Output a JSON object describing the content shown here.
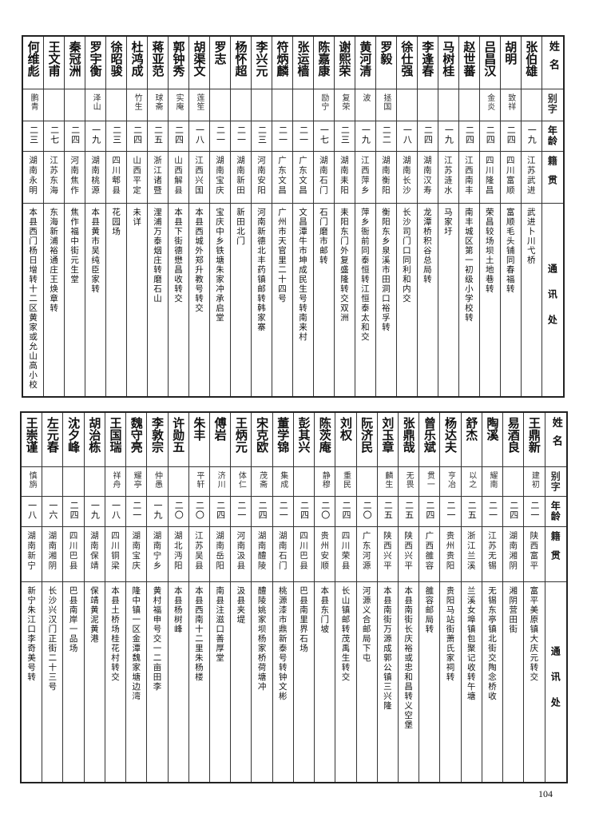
{
  "headers": {
    "name": "姓名",
    "alias": "别字",
    "age": "年龄",
    "origin": "籍贯",
    "address": "通讯处"
  },
  "tables": [
    {
      "rows": [
        {
          "name": "张伯雄",
          "alias": "",
          "age": "一九",
          "origin": "江苏武进",
          "address": "武进卜川弋桥"
        },
        {
          "name": "胡明",
          "alias": "致祥",
          "age": "二四",
          "origin": "四川富顺",
          "address": "富顺毛头铺同春福转"
        },
        {
          "name": "吕昌汉",
          "alias": "金炎",
          "age": "二四",
          "origin": "四川隆昌",
          "address": "荣昌较场坝土地巷转"
        },
        {
          "name": "赵世蕃",
          "alias": "",
          "age": "二四",
          "origin": "江西南丰",
          "address": "南丰城区第一初级小学校转"
        },
        {
          "name": "马树桂",
          "alias": "",
          "age": "一九",
          "origin": "江苏涟水",
          "address": "马家圩"
        },
        {
          "name": "李逢春",
          "alias": "",
          "age": "二四",
          "origin": "湖南汉寿",
          "address": "龙潭桥积谷总局转"
        },
        {
          "name": "徐仕强",
          "alias": "",
          "age": "一八",
          "origin": "湖南长沙",
          "address": "长沙司门口同利和内交"
        },
        {
          "name": "罗毅",
          "alias": "拯国",
          "age": "二二",
          "origin": "湖南衡阳",
          "address": "衡阳东乡泉溪市田洞口裕孚转"
        },
        {
          "name": "黄河清",
          "alias": "波",
          "age": "一九",
          "origin": "江西萍乡",
          "address": "萍乡衙前同泰恒转江恒泰太和交"
        },
        {
          "name": "谢熙荣",
          "alias": "复荣",
          "age": "二三",
          "origin": "湖南耒阳",
          "address": "耒阳东门外复盛隆转交双洲"
        },
        {
          "name": "陈嘉康",
          "alias": "励宁",
          "age": "一七",
          "origin": "湖南石门",
          "address": "石门磨市邮转"
        },
        {
          "name": "张运樯",
          "alias": "",
          "age": "二一",
          "origin": "广东文昌",
          "address": "文昌潭牛市坤成民生号转南来村"
        },
        {
          "name": "符炳麟",
          "alias": "",
          "age": "二一",
          "origin": "广东文昌",
          "address": "广州市天官里二十四号"
        },
        {
          "name": "李兴元",
          "alias": "",
          "age": "二三",
          "origin": "河南安阳",
          "address": "河南新德北丰药镇邮转韩家寨"
        },
        {
          "name": "杨怀超",
          "alias": "",
          "age": "二一",
          "origin": "湖南新田",
          "address": "新田北门"
        },
        {
          "name": "罗志",
          "alias": "",
          "age": "二一",
          "origin": "湖南宝庆",
          "address": "宝庆中乡铁塘朱家冲承启堂"
        },
        {
          "name": "胡渠文",
          "alias": "莲笙",
          "age": "一八",
          "origin": "江西兴国",
          "address": "本县西城外郑升教号转交"
        },
        {
          "name": "郭钟秀",
          "alias": "实庵",
          "age": "二四",
          "origin": "山西解县",
          "address": "本县下街德懋昌收转交"
        },
        {
          "name": "蒋亚范",
          "alias": "球斋",
          "age": "二五",
          "origin": "浙江诸暨",
          "address": "浬浦万泰烟庄转磨石山"
        },
        {
          "name": "杜鸿成",
          "alias": "竹生",
          "age": "二四",
          "origin": "山西平定",
          "address": "未详"
        },
        {
          "name": "徐昭骏",
          "alias": "",
          "age": "二三",
          "origin": "四川郫县",
          "address": "花园场"
        },
        {
          "name": "罗宇衡",
          "alias": "泽山",
          "age": "一九",
          "origin": "湖南桃源",
          "address": "本县黄市吴纯臣家转"
        },
        {
          "name": "秦冠洲",
          "alias": "",
          "age": "二四",
          "origin": "河南焦作",
          "address": "焦作福中街元生堂"
        },
        {
          "name": "王文甫",
          "alias": "",
          "age": "二七",
          "origin": "江苏东海",
          "address": "东海新浦裕通庄王焕章转"
        },
        {
          "name": "何维彪",
          "alias": "鹏青",
          "age": "二三",
          "origin": "湖南永明",
          "address": "本县西门杨日增转十二区黄家或允山高小校"
        }
      ]
    },
    {
      "rows": [
        {
          "name": "王鼎新",
          "alias": "建初",
          "age": "二一",
          "origin": "陕西富平",
          "address": "富平美原镇大庆元转交"
        },
        {
          "name": "易酒良",
          "alias": "",
          "age": "二四",
          "origin": "湖南湘阴",
          "address": "湘阴营田街"
        },
        {
          "name": "陶溪",
          "alias": "耀南",
          "age": "二一",
          "origin": "江苏无锡",
          "address": "无锡东亭镇北街交陶念桥收"
        },
        {
          "name": "舒杰",
          "alias": "以之",
          "age": "二五",
          "origin": "浙江兰溪",
          "address": "兰溪女埠镇包聚记收转午塘"
        },
        {
          "name": "杨达夫",
          "alias": "亨冶",
          "age": "二一",
          "origin": "贵州贵阳",
          "address": "贵阳马站街萧氏家祠转"
        },
        {
          "name": "曾乐斌",
          "alias": "贯一",
          "age": "二四",
          "origin": "广西雒容",
          "address": "雒容邮局转"
        },
        {
          "name": "张鼎哉",
          "alias": "无畏",
          "age": "二五",
          "origin": "陕西兴平",
          "address": "本县南街长庆裕或忠和昌转义空堡"
        },
        {
          "name": "刘玉章",
          "alias": "麟生",
          "age": "二五",
          "origin": "陕西兴平",
          "address": "本县南街万源成郭公镇三兴隆"
        },
        {
          "name": "阮济民",
          "alias": "",
          "age": "二〇",
          "origin": "广东河源",
          "address": "河源义合邮局下屯"
        },
        {
          "name": "刘权",
          "alias": "重民",
          "age": "二四",
          "origin": "四川荣县",
          "address": "长山镇邮转茂禹生转交"
        },
        {
          "name": "陈茨庵",
          "alias": "静穆",
          "age": "二〇",
          "origin": "贵州安顺",
          "address": "本县东门坡"
        },
        {
          "name": "彭其兴",
          "alias": "",
          "age": "二四",
          "origin": "四川巴县",
          "address": "巴县南里界石场"
        },
        {
          "name": "董学锦",
          "alias": "集成",
          "age": "二一",
          "origin": "湖南石门",
          "address": "桃源漆市鼎新泰号转钟文彬"
        },
        {
          "name": "宋克欧",
          "alias": "茂斋",
          "age": "二四",
          "origin": "湖南醴陵",
          "address": "醴陵姚家坝杨家桥荷塘冲"
        },
        {
          "name": "王炳元",
          "alias": "体仁",
          "age": "二一",
          "origin": "河南汲县",
          "address": "汲县夹堤"
        },
        {
          "name": "傅岩",
          "alias": "济川",
          "age": "二四",
          "origin": "湖南岳阳",
          "address": "南县注滋口善厚堂"
        },
        {
          "name": "朱丰",
          "alias": "平轩",
          "age": "二〇",
          "origin": "江苏吴县",
          "address": "本县西南十二里朱杨楼"
        },
        {
          "name": "许勋五",
          "alias": "",
          "age": "二〇",
          "origin": "湖北沔阳",
          "address": "本县杨树峰"
        },
        {
          "name": "李敦宗",
          "alias": "仲愚",
          "age": "一九",
          "origin": "湖南宁乡",
          "address": "黄村福申号交一二亩田李"
        },
        {
          "name": "魏守亮",
          "alias": "耀亭",
          "age": "二一",
          "origin": "湖南宝庆",
          "address": "隆中镇一区金潭魏家塘边湾"
        },
        {
          "name": "王国瑞",
          "alias": "祥舟",
          "age": "一八",
          "origin": "四川铜梁",
          "address": "本县土桥场桂花村转交"
        },
        {
          "name": "胡治栋",
          "alias": "",
          "age": "一九",
          "origin": "湖南保靖",
          "address": "保靖黄泥黄港"
        },
        {
          "name": "沈夕峰",
          "alias": "",
          "age": "二四",
          "origin": "四川巴县",
          "address": "巴县南岸一品场"
        },
        {
          "name": "左元春",
          "alias": "",
          "age": "一六",
          "origin": "湖南湘阴",
          "address": "长沙兴汉门正街二十三号"
        },
        {
          "name": "王崇谨",
          "alias": "慎旃",
          "age": "一八",
          "origin": "湖南新宁",
          "address": "新宁朱江口李奇美号转"
        }
      ]
    }
  ],
  "page_number": "104"
}
